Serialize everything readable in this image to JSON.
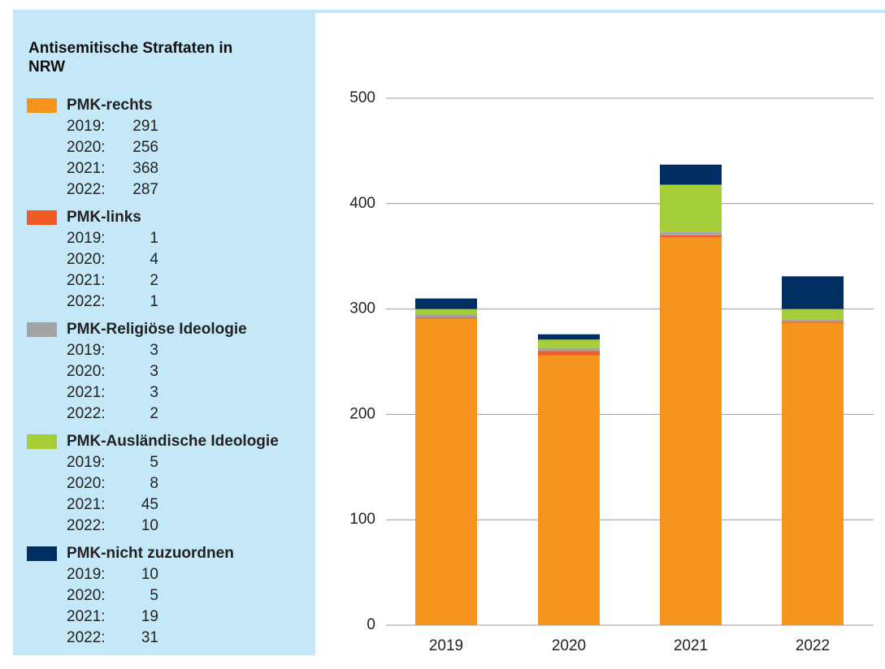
{
  "chart_data": {
    "type": "stacked_bar",
    "title": "Antisemitische Straftaten in NRW",
    "categories": [
      "2019",
      "2020",
      "2021",
      "2022"
    ],
    "legend_categories": [
      "2019:",
      "2020:",
      "2021:",
      "2022:"
    ],
    "series": [
      {
        "name": "PMK-rechts",
        "color": "#f7941d",
        "values": [
          291,
          256,
          368,
          287
        ]
      },
      {
        "name": "PMK-links",
        "color": "#f15a24",
        "values": [
          1,
          4,
          2,
          1
        ]
      },
      {
        "name": "PMK-Religiöse Ideologie",
        "color": "#a3a3a3",
        "values": [
          3,
          3,
          3,
          2
        ]
      },
      {
        "name": "PMK-Ausländische Ideologie",
        "color": "#a6ce39",
        "values": [
          5,
          8,
          45,
          10
        ]
      },
      {
        "name": "PMK-nicht zuzuordnen",
        "color": "#002d62",
        "values": [
          10,
          5,
          19,
          31
        ]
      }
    ],
    "ylim": [
      0,
      500
    ],
    "yticks": [
      0,
      100,
      200,
      300,
      400,
      500
    ],
    "grid": true,
    "legend": "left"
  }
}
